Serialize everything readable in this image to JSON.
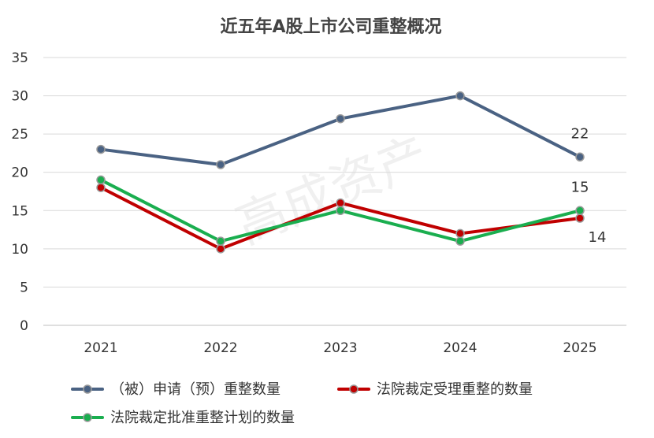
{
  "chart_data": {
    "type": "line",
    "title": "近五年A股上市公司重整概况",
    "watermark": "高成资产",
    "x": [
      "2021",
      "2022",
      "2023",
      "2024",
      "2025"
    ],
    "ylim": [
      0,
      35
    ],
    "yticks": [
      0,
      5,
      10,
      15,
      20,
      25,
      30,
      35
    ],
    "grid": true,
    "legend_position": "bottom",
    "series": [
      {
        "name": "（被）申请（预）重整数量",
        "values": [
          23,
          21,
          27,
          30,
          22
        ],
        "color": "#4a6283"
      },
      {
        "name": "法院裁定受理重整的数量",
        "values": [
          18,
          10,
          16,
          12,
          14
        ],
        "color": "#c00000"
      },
      {
        "name": "法院裁定批准重整计划的数量",
        "values": [
          19,
          11,
          15,
          11,
          15
        ],
        "color": "#1aae4f"
      }
    ],
    "data_labels": [
      {
        "series": 0,
        "index": 4,
        "text": "22"
      },
      {
        "series": 2,
        "index": 4,
        "text": "15"
      },
      {
        "series": 1,
        "index": 4,
        "text": "14"
      }
    ]
  }
}
